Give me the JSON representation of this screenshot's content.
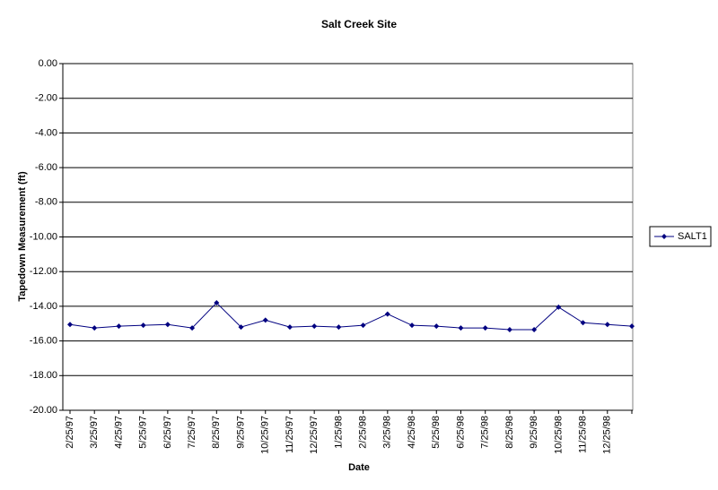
{
  "chart_data": {
    "type": "line",
    "title": "Salt Creek Site",
    "xlabel": "Date",
    "ylabel": "Tapedown Measurement (ft)",
    "categories": [
      "2/25/97",
      "3/25/97",
      "4/25/97",
      "5/25/97",
      "6/25/97",
      "7/25/97",
      "8/25/97",
      "9/25/97",
      "10/25/97",
      "11/25/97",
      "12/25/97",
      "1/25/98",
      "2/25/98",
      "3/25/98",
      "4/25/98",
      "5/25/98",
      "6/25/98",
      "7/25/98",
      "8/25/98",
      "9/25/98",
      "10/25/98",
      "11/25/98",
      "12/25/98",
      null
    ],
    "series": [
      {
        "name": "SALT1",
        "color": "#000080",
        "values": [
          -15.05,
          -15.25,
          -15.15,
          -15.1,
          -15.05,
          -15.25,
          -13.8,
          -15.2,
          -14.8,
          -15.2,
          -15.15,
          -15.2,
          -15.1,
          -14.45,
          -15.1,
          -15.15,
          -15.25,
          -15.25,
          -15.35,
          -15.35,
          -14.05,
          -14.95,
          -15.05,
          -15.15
        ]
      }
    ],
    "ylim": [
      -20,
      0
    ],
    "yticks": [
      {
        "value": -20,
        "label": "-20.00"
      },
      {
        "value": -18,
        "label": "-18.00"
      },
      {
        "value": -16,
        "label": "-16.00"
      },
      {
        "value": -14,
        "label": "-14.00"
      },
      {
        "value": -12,
        "label": "-12.00"
      },
      {
        "value": -10,
        "label": "-10.00"
      },
      {
        "value": -8,
        "label": "-8.00"
      },
      {
        "value": -6,
        "label": "-6.00"
      },
      {
        "value": -4,
        "label": "-4.00"
      },
      {
        "value": -2,
        "label": "-2.00"
      },
      {
        "value": 0,
        "label": "0.00"
      }
    ],
    "grid": true,
    "legend": "right"
  }
}
